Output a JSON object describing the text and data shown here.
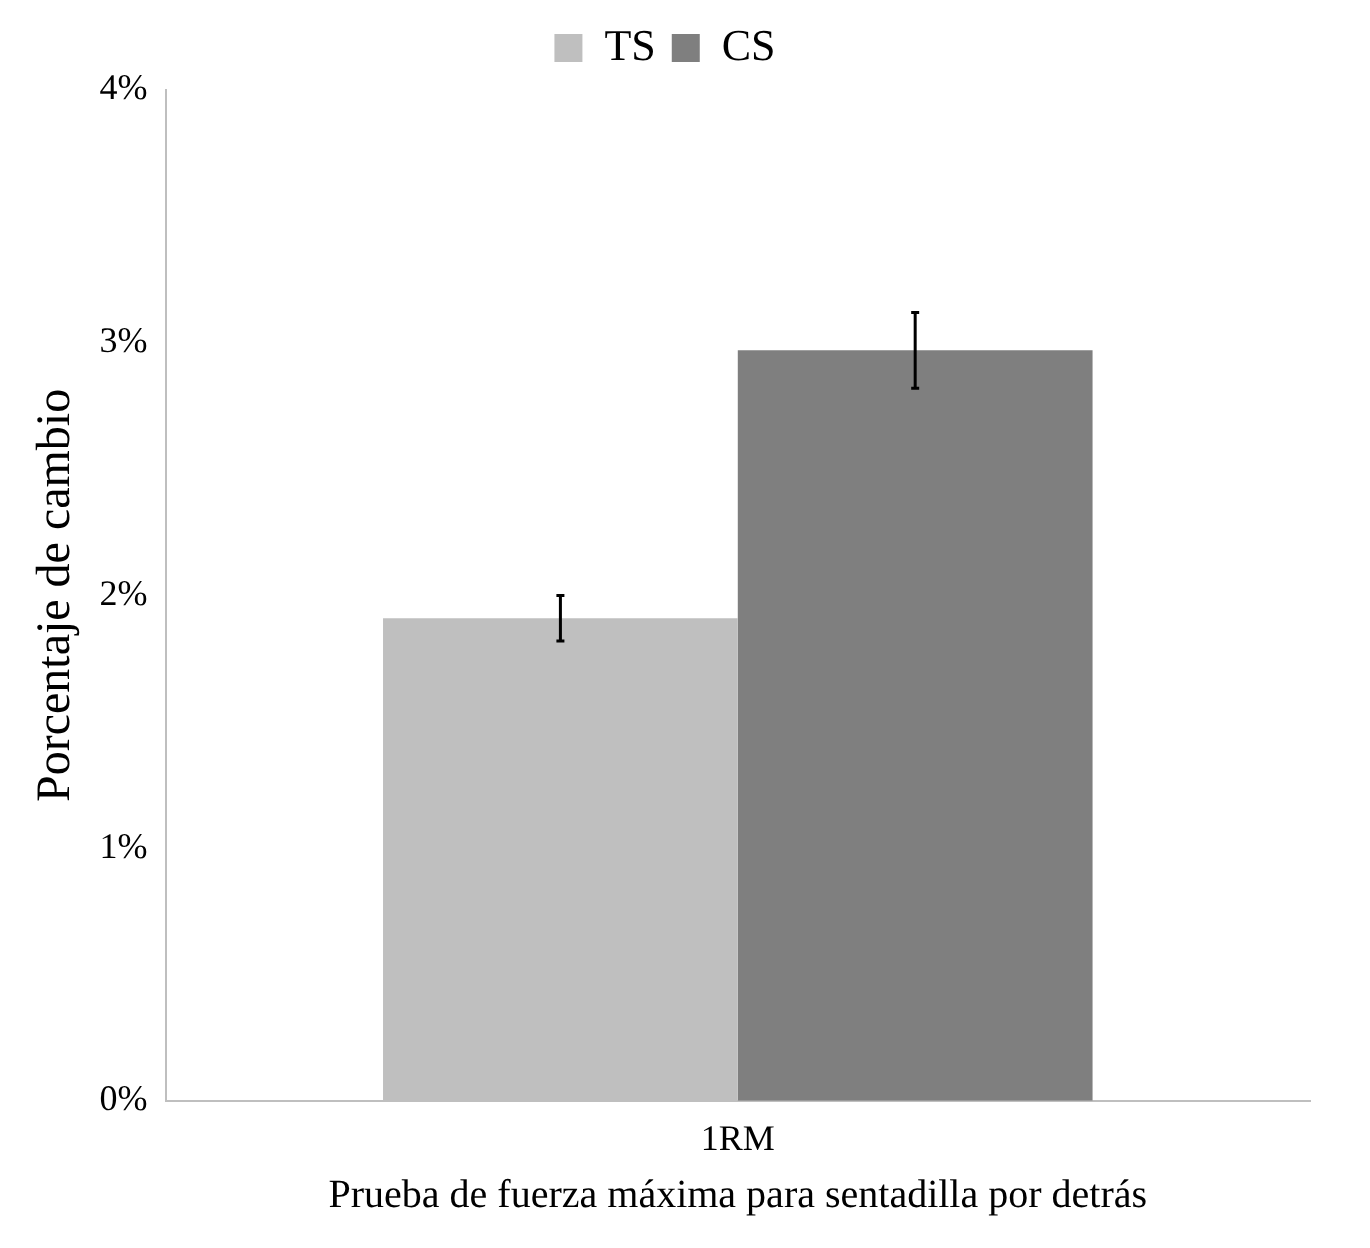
{
  "chart_data": {
    "type": "bar",
    "xlabel": "Prueba de fuerza máxima para sentadilla por detrás",
    "ylabel": "Porcentaje de cambio",
    "categories": [
      "1RM"
    ],
    "series": [
      {
        "name": "TS",
        "color": "#bfbfbf",
        "values": [
          1.91
        ],
        "errors": [
          0.09
        ]
      },
      {
        "name": "CS",
        "color": "#7f7f7f",
        "values": [
          2.97
        ],
        "errors": [
          0.15
        ]
      }
    ],
    "ylim": [
      0,
      4
    ],
    "yticks": [
      {
        "value": 0,
        "label": "0%"
      },
      {
        "value": 1,
        "label": "1%"
      },
      {
        "value": 2,
        "label": "2%"
      },
      {
        "value": 3,
        "label": "3%"
      },
      {
        "value": 4,
        "label": "4%"
      }
    ],
    "grid": false,
    "legend": "top"
  }
}
